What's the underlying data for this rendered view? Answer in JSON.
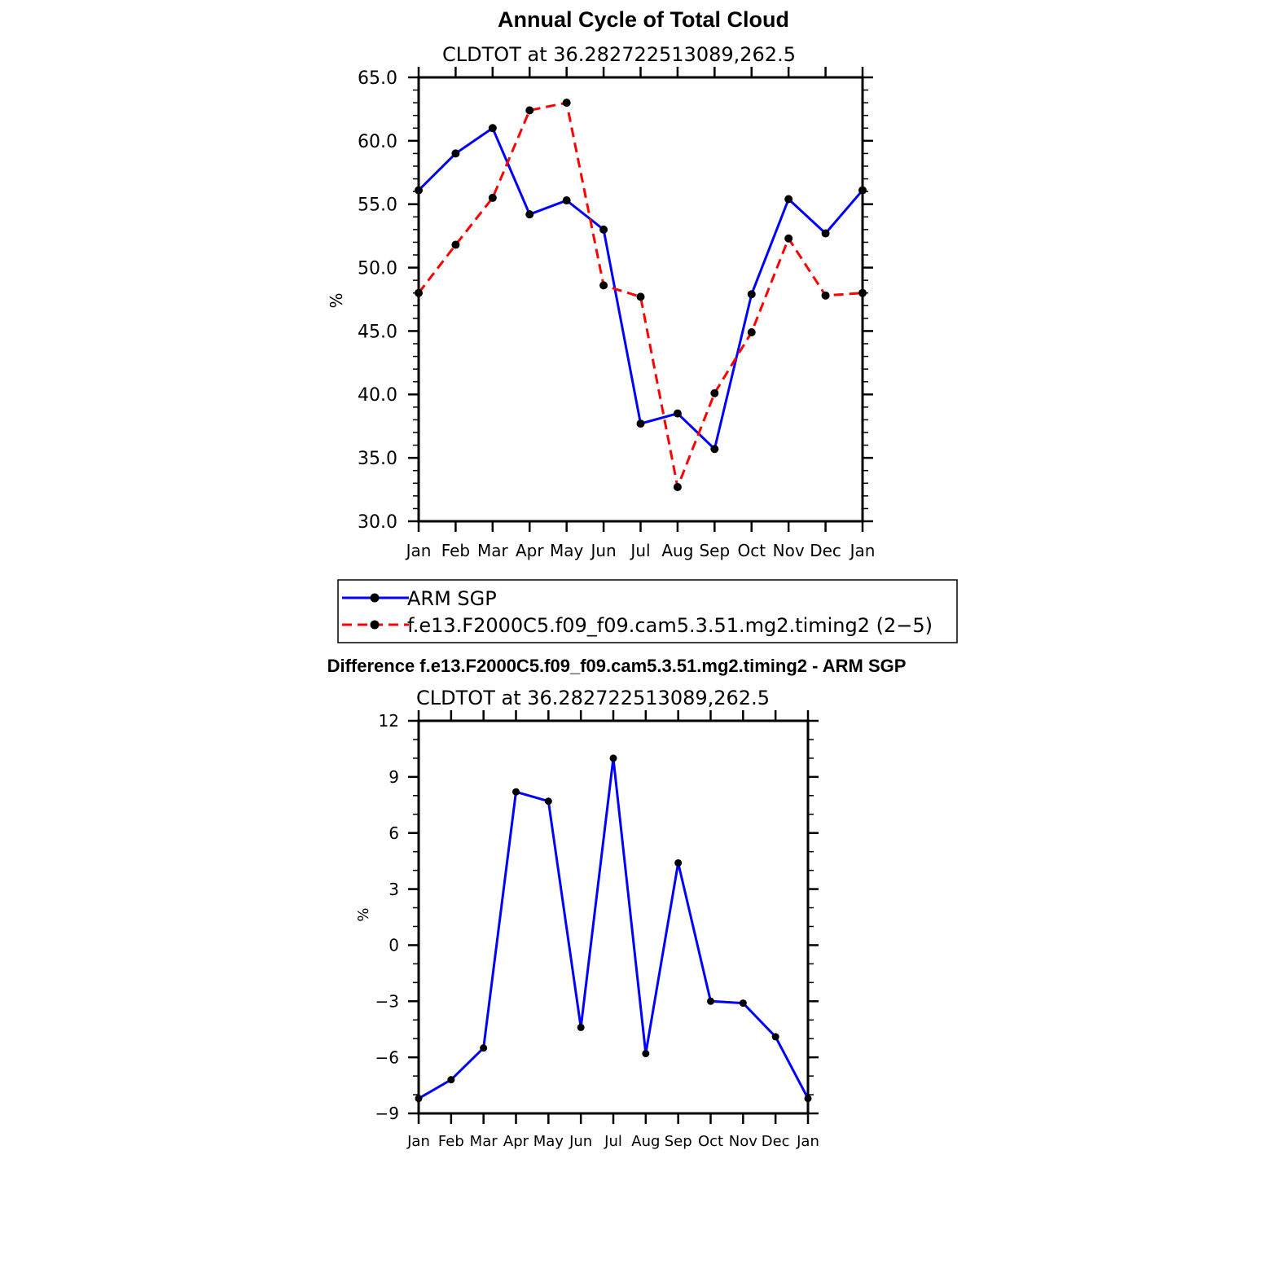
{
  "chart_data": [
    {
      "type": "line",
      "title": "Annual Cycle of Total Cloud",
      "subtitle": "CLDTOT at 36.282722513089,262.5",
      "xlabel": "",
      "ylabel": "%",
      "categories": [
        "Jan",
        "Feb",
        "Mar",
        "Apr",
        "May",
        "Jun",
        "Jul",
        "Aug",
        "Sep",
        "Oct",
        "Nov",
        "Dec",
        "Jan"
      ],
      "ylim": [
        30,
        65
      ],
      "yticks": [
        "30.0",
        "35.0",
        "40.0",
        "45.0",
        "50.0",
        "55.0",
        "60.0",
        "65.0"
      ],
      "series": [
        {
          "name": "ARM SGP",
          "color": "#0000ff",
          "dash": "solid",
          "values": [
            56.1,
            59.0,
            61.0,
            54.2,
            55.3,
            53.0,
            37.7,
            38.5,
            35.7,
            47.9,
            55.4,
            52.7,
            56.1
          ]
        },
        {
          "name": "f.e13.F2000C5.f09_f09.cam5.3.51.mg2.timing2 (2−5)",
          "color": "#ff0000",
          "dash": "dashed",
          "values": [
            48.0,
            51.8,
            55.5,
            62.4,
            63.0,
            48.6,
            47.7,
            32.7,
            40.1,
            44.9,
            52.3,
            47.8,
            48.0
          ]
        }
      ],
      "legend": "below"
    },
    {
      "type": "line",
      "title": "Difference f.e13.F2000C5.f09_f09.cam5.3.51.mg2.timing2 - ARM SGP",
      "subtitle": "CLDTOT at 36.282722513089,262.5",
      "xlabel": "",
      "ylabel": "%",
      "categories": [
        "Jan",
        "Feb",
        "Mar",
        "Apr",
        "May",
        "Jun",
        "Jul",
        "Aug",
        "Sep",
        "Oct",
        "Nov",
        "Dec",
        "Jan"
      ],
      "ylim": [
        -9,
        12
      ],
      "yticks": [
        "−9",
        "−6",
        "−3",
        "0",
        "3",
        "6",
        "9",
        "12"
      ],
      "series": [
        {
          "name": "Difference",
          "color": "#0000ff",
          "dash": "solid",
          "values": [
            -8.2,
            -7.2,
            -5.5,
            8.2,
            7.7,
            -4.4,
            10.0,
            -5.8,
            4.4,
            -3.0,
            -3.1,
            -4.9,
            -8.2
          ]
        }
      ]
    }
  ]
}
